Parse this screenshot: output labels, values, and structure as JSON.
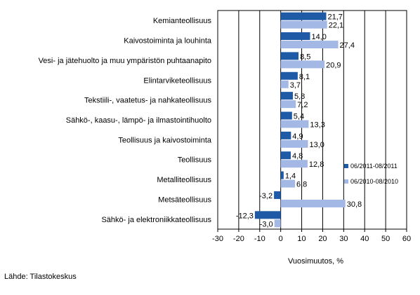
{
  "chart_data": {
    "type": "bar",
    "orientation": "horizontal",
    "categories": [
      "Kemianteollisuus",
      "Kaivostoiminta ja louhinta",
      "Vesi- ja jätehuolto ja muu ympäristön puhtaanapito",
      "Elintarviketeollisuus",
      "Tekstiili-, vaatetus- ja nahkateollisuus",
      "Sähkö-, kaasu-, lämpö- ja ilmastointihuolto",
      "Teollisuus ja kaivostoiminta",
      "Teollisuus",
      "Metalliteollisuus",
      "Metsäteollisuus",
      "Sähkö- ja elektroniikkateollisuus"
    ],
    "series": [
      {
        "name": "06/2011-08/2011",
        "color": "#1f5aa6",
        "values": [
          21.7,
          14.0,
          8.5,
          8.1,
          5.8,
          5.4,
          4.9,
          4.8,
          1.4,
          -3.2,
          -12.3
        ],
        "labels": [
          "21,7",
          "14,0",
          "8,5",
          "8,1",
          "5,8",
          "5,4",
          "4,9",
          "4,8",
          "1,4",
          "-3,2",
          "-12,3"
        ]
      },
      {
        "name": "06/2010-08/2010",
        "color": "#a4b8e6",
        "values": [
          22.1,
          27.4,
          20.9,
          3.7,
          7.2,
          13.3,
          13.0,
          12.8,
          6.8,
          30.8,
          -3.0
        ],
        "labels": [
          "22,1",
          "27,4",
          "20,9",
          "3,7",
          "7,2",
          "13,3",
          "13,0",
          "12,8",
          "6,8",
          "30,8",
          "-3,0"
        ]
      }
    ],
    "xticks": [
      -30,
      -20,
      -10,
      0,
      10,
      20,
      30,
      40,
      50,
      60
    ],
    "xlim": [
      -30,
      60
    ],
    "xlabel": "Vuosimuutos, %",
    "grid": true,
    "legend_position": "right"
  },
  "source": "Lähde: Tilastokeskus"
}
